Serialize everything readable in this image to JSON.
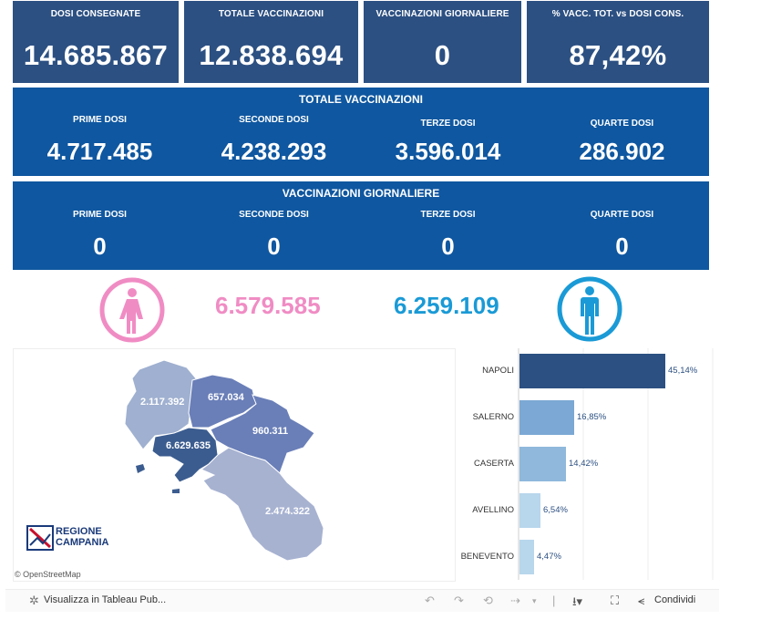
{
  "kpis": [
    {
      "label": "DOSI  CONSEGNATE",
      "value": "14.685.867"
    },
    {
      "label": "TOTALE VACCINAZIONI",
      "value": "12.838.694"
    },
    {
      "label": "VACCINAZIONI GIORNALIERE",
      "value": "0"
    },
    {
      "label": "% VACC. TOT. vs DOSI CONS.",
      "value": "87,42%"
    }
  ],
  "totale": {
    "title": "TOTALE VACCINAZIONI",
    "cells": [
      {
        "label": "PRIME DOSI",
        "value": "4.717.485"
      },
      {
        "label": "SECONDE DOSI",
        "value": "4.238.293"
      },
      {
        "label": "TERZE DOSI",
        "value": "3.596.014"
      },
      {
        "label": "QUARTE DOSI",
        "value": "286.902"
      }
    ]
  },
  "giornaliere": {
    "title": "VACCINAZIONI GIORNALIERE",
    "cells": [
      {
        "label": "PRIME DOSI",
        "value": "0"
      },
      {
        "label": "SECONDE DOSI",
        "value": "0"
      },
      {
        "label": "TERZE DOSI",
        "value": "0"
      },
      {
        "label": "QUARTE DOSI",
        "value": "0"
      }
    ]
  },
  "gender": {
    "female_value": "6.579.585",
    "male_value": "6.259.109",
    "female_color": "#f08cc4",
    "male_color": "#1a9ad6",
    "female_icon": "female-icon",
    "male_icon": "male-icon"
  },
  "map": {
    "provinces": [
      {
        "name": "caserta",
        "value": "2.117.392"
      },
      {
        "name": "benevento",
        "value": "657.034"
      },
      {
        "name": "avellino",
        "value": "960.311"
      },
      {
        "name": "napoli",
        "value": "6.629.635"
      },
      {
        "name": "salerno",
        "value": "2.474.322"
      }
    ],
    "logo_line1": "REGIONE",
    "logo_line2": "CAMPANIA",
    "attribution": "© OpenStreetMap"
  },
  "chart_data": {
    "type": "bar",
    "orientation": "horizontal",
    "categories": [
      "NAPOLI",
      "SALERNO",
      "CASERTA",
      "AVELLINO",
      "BENEVENTO"
    ],
    "values": [
      45.14,
      16.85,
      14.42,
      6.54,
      4.47
    ],
    "value_labels": [
      "45,14%",
      "16,85%",
      "14,42%",
      "6,54%",
      "4,47%"
    ],
    "colors": [
      "#2c5082",
      "#7ba8d4",
      "#8fb8dc",
      "#b8d6ec",
      "#b8d6ec"
    ],
    "grid": true
  },
  "toolbar": {
    "view_label": "Visualizza in Tableau Pub...",
    "share_label": "Condividi"
  }
}
